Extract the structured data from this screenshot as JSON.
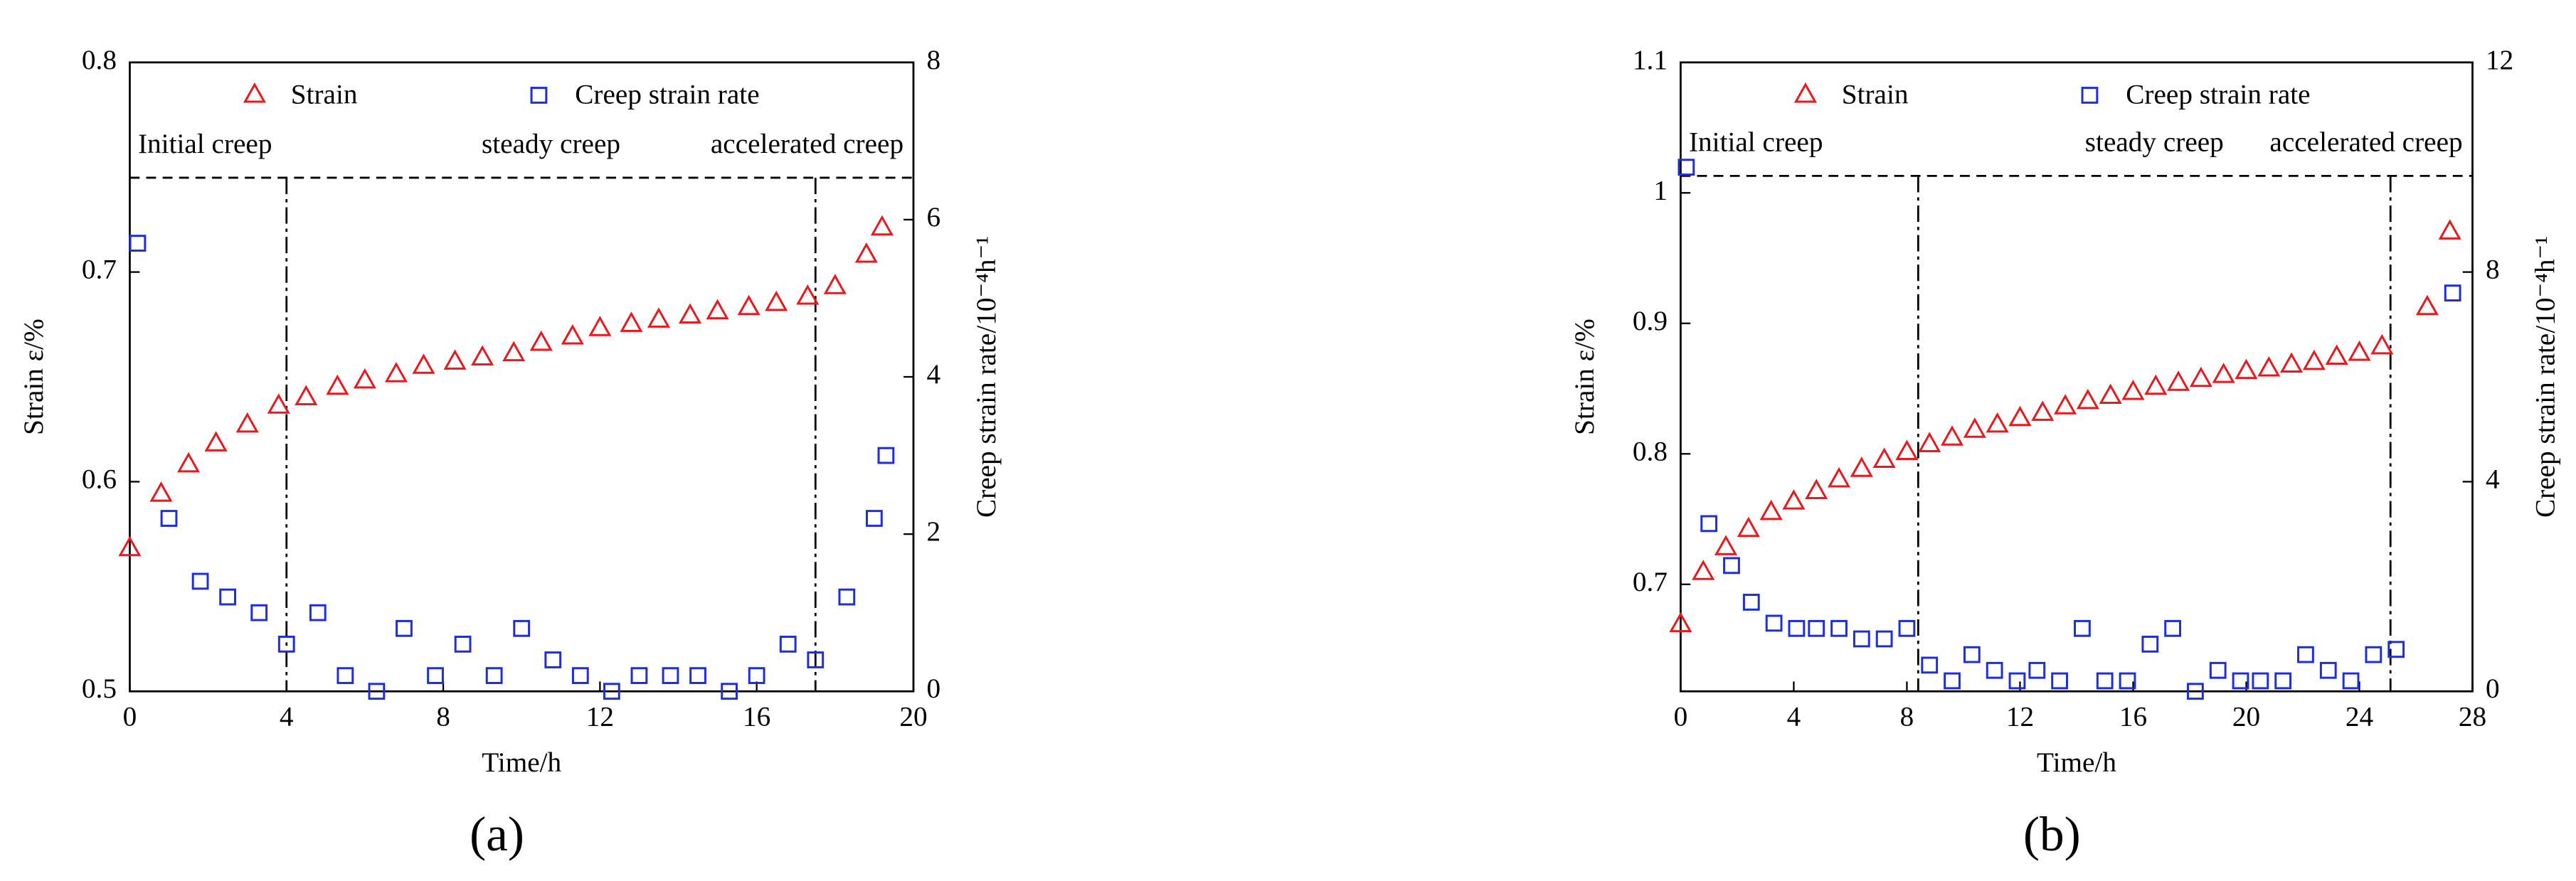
{
  "chart_data": [
    {
      "type": "scatter",
      "label": "(a)",
      "x_label": "Time/h",
      "y_label": "Strain ε/%",
      "y2_label": "Creep strain rate/10⁻⁴h⁻¹",
      "xlim": [
        0,
        20
      ],
      "xticks": [
        0,
        4,
        8,
        12,
        16,
        20
      ],
      "ylim": [
        0.5,
        0.8
      ],
      "yticks": [
        0.5,
        0.6,
        0.7,
        0.8
      ],
      "y2lim": [
        0,
        8
      ],
      "y2ticks": [
        0,
        2,
        4,
        6,
        8
      ],
      "phase_boundaries": [
        4,
        17.5
      ],
      "phase_divider_y": 0.745,
      "phase_labels": [
        "Initial creep",
        "steady  creep",
        "accelerated creep"
      ],
      "series": [
        {
          "name": "Strain",
          "color": "#e8191c",
          "marker": "triangle",
          "x": [
            0,
            0.8,
            1.5,
            2.2,
            3,
            3.8,
            4.5,
            5.3,
            6,
            6.8,
            7.5,
            8.3,
            9,
            9.8,
            10.5,
            11.3,
            12,
            12.8,
            13.5,
            14.3,
            15,
            15.8,
            16.5,
            17.3,
            18,
            18.8,
            19.2
          ],
          "values": [
            0.568,
            0.594,
            0.608,
            0.618,
            0.627,
            0.636,
            0.64,
            0.645,
            0.648,
            0.651,
            0.655,
            0.657,
            0.659,
            0.661,
            0.666,
            0.669,
            0.673,
            0.675,
            0.677,
            0.679,
            0.681,
            0.683,
            0.685,
            0.688,
            0.693,
            0.708,
            0.721
          ]
        },
        {
          "name": "Creep strain rate",
          "color": "#1f2fd6",
          "marker": "square",
          "axis": "y2",
          "x": [
            0.2,
            1,
            1.8,
            2.5,
            3.3,
            4,
            4.8,
            5.5,
            6.3,
            7,
            7.8,
            8.5,
            9.3,
            10,
            10.8,
            11.5,
            12.3,
            13,
            13.8,
            14.5,
            15.3,
            16,
            16.8,
            17.5,
            18.3,
            19,
            19.3
          ],
          "values": [
            5.7,
            2.2,
            1.4,
            1.2,
            1,
            0.6,
            1,
            0.2,
            0,
            0.8,
            0.2,
            0.6,
            0.2,
            0.8,
            0.4,
            0.2,
            0,
            0.2,
            0.2,
            0.2,
            0,
            0.2,
            0.6,
            0.4,
            1.2,
            2.2,
            3
          ]
        }
      ]
    },
    {
      "type": "scatter",
      "label": "(b)",
      "x_label": "Time/h",
      "y_label": "Strain ε/%",
      "y2_label": "Creep strain rate/10⁻⁴h⁻¹",
      "xlim": [
        0,
        28
      ],
      "xticks": [
        0,
        4,
        8,
        12,
        16,
        20,
        24,
        28
      ],
      "ylim": [
        0.618,
        1.1
      ],
      "yticks": [
        0.7,
        0.8,
        0.9,
        1.0,
        1.1
      ],
      "y2lim": [
        0,
        12
      ],
      "y2ticks": [
        0,
        4,
        8,
        12
      ],
      "phase_boundaries": [
        8.4,
        25.1
      ],
      "phase_divider_y": 1.013,
      "phase_labels": [
        "Initial creep",
        "steady  creep",
        "accelerated creep"
      ],
      "series": [
        {
          "name": "Strain",
          "color": "#e8191c",
          "marker": "triangle",
          "x": [
            0,
            0.8,
            1.6,
            2.4,
            3.2,
            4,
            4.8,
            5.6,
            6.4,
            7.2,
            8,
            8.8,
            9.6,
            10.4,
            11.2,
            12,
            12.8,
            13.6,
            14.4,
            15.2,
            16,
            16.8,
            17.6,
            18.4,
            19.2,
            20,
            20.8,
            21.6,
            22.4,
            23.2,
            24,
            24.8,
            26.4,
            27.2
          ],
          "values": [
            0.669,
            0.709,
            0.728,
            0.742,
            0.755,
            0.763,
            0.771,
            0.78,
            0.788,
            0.795,
            0.801,
            0.807,
            0.812,
            0.818,
            0.822,
            0.827,
            0.831,
            0.836,
            0.84,
            0.844,
            0.847,
            0.851,
            0.854,
            0.857,
            0.86,
            0.863,
            0.865,
            0.868,
            0.87,
            0.874,
            0.877,
            0.882,
            0.912,
            0.97
          ]
        },
        {
          "name": "Creep strain rate",
          "color": "#1f2fd6",
          "marker": "square",
          "axis": "y2",
          "x": [
            0.2,
            1,
            1.8,
            2.5,
            3.3,
            4.1,
            4.8,
            5.6,
            6.4,
            7.2,
            8,
            8.8,
            9.6,
            10.3,
            11.1,
            11.9,
            12.6,
            13.4,
            14.2,
            15,
            15.8,
            16.6,
            17.4,
            18.2,
            19,
            19.8,
            20.5,
            21.3,
            22.1,
            22.9,
            23.7,
            24.5,
            25.3,
            27.3
          ],
          "values": [
            10,
            3.2,
            2.4,
            1.7,
            1.3,
            1.2,
            1.2,
            1.2,
            1,
            1,
            1.2,
            0.5,
            0.2,
            0.7,
            0.4,
            0.2,
            0.4,
            0.2,
            1.2,
            0.2,
            0.2,
            0.9,
            1.2,
            0,
            0.4,
            0.2,
            0.2,
            0.2,
            0.7,
            0.4,
            0.2,
            0.7,
            0.8,
            7.6
          ]
        }
      ]
    }
  ]
}
